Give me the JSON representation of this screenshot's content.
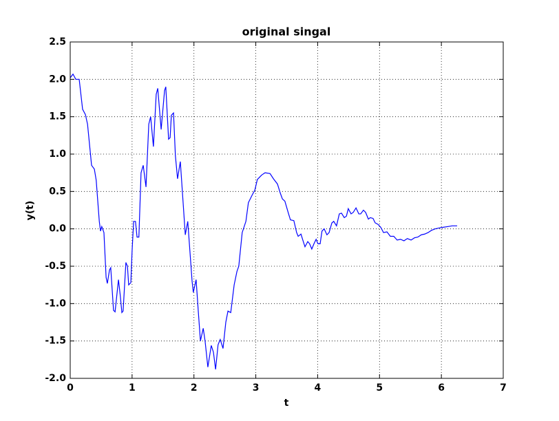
{
  "chart_data": {
    "type": "line",
    "title": "original singal",
    "x_label": "t",
    "y_label": "y(t)",
    "x": [
      0,
      0.045,
      0.09,
      0.145,
      0.2,
      0.245,
      0.28,
      0.345,
      0.39,
      0.42,
      0.47,
      0.49,
      0.51,
      0.545,
      0.58,
      0.6,
      0.635,
      0.655,
      0.7,
      0.725,
      0.78,
      0.81,
      0.835,
      0.855,
      0.9,
      0.925,
      0.945,
      0.98,
      1.0,
      1.025,
      1.055,
      1.08,
      1.11,
      1.145,
      1.18,
      1.225,
      1.27,
      1.3,
      1.345,
      1.39,
      1.415,
      1.47,
      1.525,
      1.545,
      1.59,
      1.615,
      1.635,
      1.67,
      1.7,
      1.735,
      1.78,
      1.825,
      1.86,
      1.9,
      1.935,
      1.97,
      1.99,
      2.035,
      2.07,
      2.105,
      2.15,
      2.18,
      2.225,
      2.28,
      2.315,
      2.35,
      2.39,
      2.425,
      2.47,
      2.515,
      2.55,
      2.595,
      2.65,
      2.695,
      2.725,
      2.78,
      2.84,
      2.88,
      2.94,
      2.985,
      3.025,
      3.095,
      3.15,
      3.23,
      3.285,
      3.35,
      3.395,
      3.43,
      3.47,
      3.53,
      3.56,
      3.615,
      3.66,
      3.685,
      3.73,
      3.76,
      3.795,
      3.84,
      3.87,
      3.905,
      3.94,
      3.975,
      4.005,
      4.04,
      4.07,
      4.105,
      4.15,
      4.185,
      4.23,
      4.26,
      4.305,
      4.35,
      4.385,
      4.43,
      4.465,
      4.495,
      4.54,
      4.575,
      4.62,
      4.665,
      4.695,
      4.74,
      4.775,
      4.82,
      4.85,
      4.895,
      4.93,
      4.975,
      5.02,
      5.065,
      5.12,
      5.175,
      5.23,
      5.285,
      5.34,
      5.395,
      5.45,
      5.51,
      5.565,
      5.62,
      5.675,
      5.73,
      5.785,
      5.84,
      5.9,
      5.955,
      6.02,
      6.1,
      6.175,
      6.255
    ],
    "series": [
      {
        "color": "#0000ff",
        "values": [
          2.02,
          2.07,
          2.0,
          2.0,
          1.6,
          1.53,
          1.4,
          0.85,
          0.8,
          0.65,
          0.1,
          -0.03,
          0.03,
          -0.05,
          -0.65,
          -0.73,
          -0.55,
          -0.52,
          -1.09,
          -1.11,
          -0.68,
          -0.9,
          -1.12,
          -1.1,
          -0.45,
          -0.5,
          -0.75,
          -0.72,
          -0.3,
          0.1,
          0.1,
          -0.11,
          -0.11,
          0.75,
          0.85,
          0.56,
          1.4,
          1.5,
          1.1,
          1.8,
          1.88,
          1.33,
          1.85,
          1.9,
          1.2,
          1.22,
          1.52,
          1.55,
          0.98,
          0.67,
          0.9,
          0.35,
          -0.08,
          0.1,
          -0.3,
          -0.7,
          -0.85,
          -0.68,
          -1.1,
          -1.5,
          -1.33,
          -1.5,
          -1.85,
          -1.56,
          -1.65,
          -1.88,
          -1.55,
          -1.48,
          -1.6,
          -1.25,
          -1.1,
          -1.12,
          -0.75,
          -0.57,
          -0.5,
          -0.05,
          0.1,
          0.35,
          0.45,
          0.52,
          0.66,
          0.72,
          0.75,
          0.74,
          0.67,
          0.6,
          0.48,
          0.4,
          0.37,
          0.2,
          0.12,
          0.11,
          -0.05,
          -0.1,
          -0.07,
          -0.15,
          -0.24,
          -0.17,
          -0.2,
          -0.27,
          -0.2,
          -0.14,
          -0.2,
          -0.2,
          -0.03,
          0.0,
          -0.08,
          -0.05,
          0.08,
          0.1,
          0.04,
          0.2,
          0.21,
          0.15,
          0.17,
          0.27,
          0.2,
          0.22,
          0.28,
          0.2,
          0.2,
          0.25,
          0.22,
          0.13,
          0.15,
          0.14,
          0.08,
          0.06,
          0.02,
          -0.05,
          -0.04,
          -0.1,
          -0.1,
          -0.15,
          -0.14,
          -0.16,
          -0.13,
          -0.15,
          -0.12,
          -0.11,
          -0.08,
          -0.07,
          -0.05,
          -0.02,
          0.0,
          0.01,
          0.02,
          0.03,
          0.04,
          0.04
        ]
      }
    ],
    "xlim": [
      0,
      7
    ],
    "xticks": [
      0,
      1,
      2,
      3,
      4,
      5,
      6,
      7
    ],
    "ylim": [
      -2.0,
      2.5
    ],
    "yticks": [
      {
        "value": -2.0,
        "label": "-2.0"
      },
      -1.5,
      {
        "value": -1.0,
        "label": "-1.0"
      },
      -0.5,
      {
        "value": 0.0,
        "label": "0.0"
      },
      0.5,
      {
        "value": 1.0,
        "label": "1.0"
      },
      1.5,
      {
        "value": 2.0,
        "label": "2.0"
      },
      2.5
    ],
    "grid": true
  }
}
